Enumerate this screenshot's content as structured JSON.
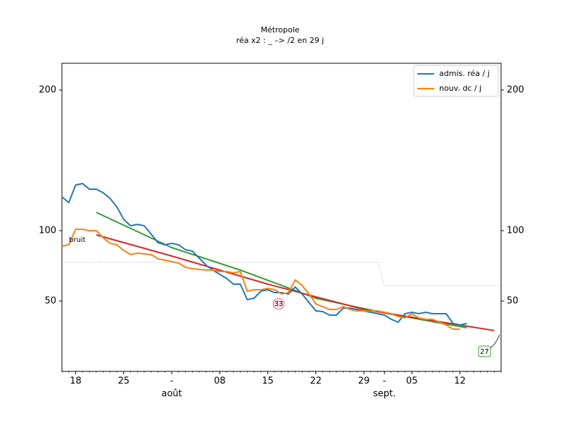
{
  "chart_data": {
    "type": "line",
    "title": "Métropole",
    "subtitle": "réa x2 : _ –> /2 en 29 j",
    "x": [
      "07-16",
      "07-17",
      "07-18",
      "07-19",
      "07-20",
      "07-21",
      "07-22",
      "07-23",
      "07-24",
      "07-25",
      "07-26",
      "07-27",
      "07-28",
      "07-29",
      "07-30",
      "07-31",
      "08-01",
      "08-02",
      "08-03",
      "08-04",
      "08-05",
      "08-06",
      "08-07",
      "08-08",
      "08-09",
      "08-10",
      "08-11",
      "08-12",
      "08-13",
      "08-14",
      "08-15",
      "08-16",
      "08-17",
      "08-18",
      "08-19",
      "08-20",
      "08-21",
      "08-22",
      "08-23",
      "08-24",
      "08-25",
      "08-26",
      "08-27",
      "08-28",
      "08-29",
      "08-30",
      "08-31",
      "09-01",
      "09-02",
      "09-03",
      "09-04",
      "09-05",
      "09-06",
      "09-07",
      "09-08",
      "09-09",
      "09-10",
      "09-11",
      "09-12",
      "09-13"
    ],
    "series": [
      {
        "name": "admis. réa / j",
        "color": "#1f77b4",
        "values": [
          124,
          120,
          132.5,
          133.5,
          129.5,
          129.5,
          127,
          123,
          117,
          108,
          103.5,
          104.5,
          103.5,
          97.5,
          91.5,
          90,
          91,
          90,
          86.5,
          85.5,
          80.5,
          75.5,
          72,
          69,
          66,
          62,
          62,
          51,
          52,
          57,
          58,
          56,
          56,
          55,
          60,
          55,
          49,
          43,
          42.5,
          40,
          40,
          45,
          45,
          44,
          43,
          42,
          41,
          40,
          37,
          35,
          41,
          42,
          41,
          42,
          41,
          41,
          41,
          34,
          33,
          34
        ]
      },
      {
        "name": "nouv. dc / j",
        "color": "#ff7f0e",
        "values": [
          89,
          90,
          101,
          101,
          100,
          100,
          95,
          91,
          90,
          86,
          83,
          84,
          83.5,
          83,
          80,
          79,
          78,
          77,
          74,
          73,
          72.5,
          72,
          72,
          71,
          71,
          70,
          71,
          57,
          58,
          58,
          59,
          58,
          55,
          56,
          65,
          61,
          55,
          48,
          46,
          44,
          44,
          46,
          44,
          43,
          43,
          43,
          43,
          42,
          41,
          39,
          38,
          41,
          38,
          37,
          37,
          35,
          33,
          30,
          30,
          null
        ]
      }
    ],
    "trends": [
      {
        "color": "#2ca02c",
        "x": [
          "07-21",
          "08-01",
          "08-11",
          "08-22",
          "09-01",
          "09-13"
        ],
        "values": [
          113,
          88,
          72,
          52,
          41.5,
          31
        ]
      },
      {
        "color": "#d62728",
        "x": [
          "07-21",
          "08-01",
          "08-15",
          "08-29",
          "09-17"
        ],
        "values": [
          97,
          82,
          62,
          44,
          29
        ]
      }
    ],
    "annotations": [
      {
        "text": "bruit"
      },
      {
        "text": "33",
        "color": "#d62728"
      },
      {
        "text": "27",
        "color": "#2ca02c"
      }
    ],
    "xlim": [
      "07-16",
      "09-18"
    ],
    "xticks": [
      {
        "value": "07-18",
        "label": "18"
      },
      {
        "value": "07-25",
        "label": "25"
      },
      {
        "value": "08-01",
        "label": "-"
      },
      {
        "value": "08-08",
        "label": "08"
      },
      {
        "value": "08-15",
        "label": "15"
      },
      {
        "value": "08-22",
        "label": "22"
      },
      {
        "value": "08-29",
        "label": "29"
      },
      {
        "value": "09-01",
        "label": "-"
      },
      {
        "value": "09-05",
        "label": "05"
      },
      {
        "value": "09-12",
        "label": "12"
      }
    ],
    "month_labels": [
      {
        "value": "08-01",
        "label": "août"
      },
      {
        "value": "09-01",
        "label": "sept."
      }
    ],
    "ylim": [
      0,
      219
    ],
    "yticks": [
      50,
      100,
      200
    ],
    "y2lim": [
      0,
      219
    ],
    "y2ticks": [
      50,
      100,
      200
    ],
    "legend": "upper right"
  }
}
